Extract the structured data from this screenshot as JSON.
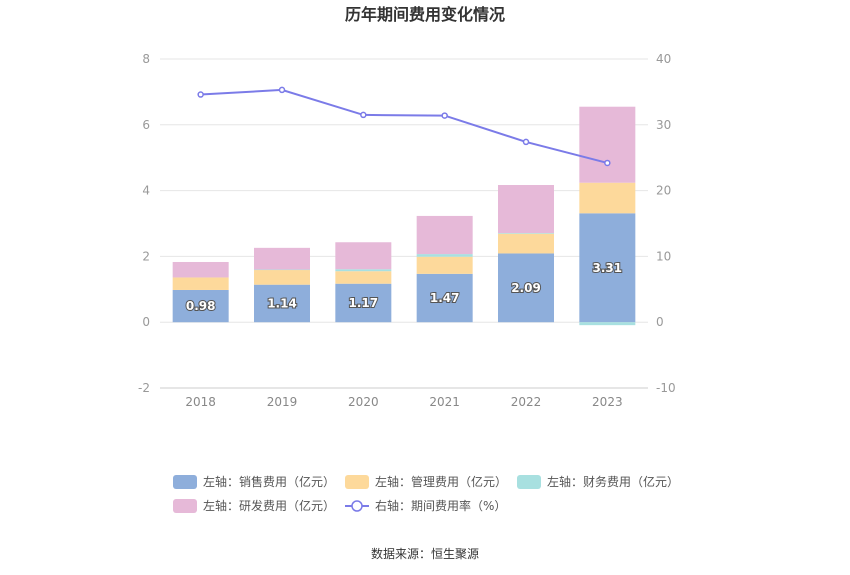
{
  "chart_data": {
    "type": "bar",
    "title": "历年期间费用变化情况",
    "categories": [
      "2018",
      "2019",
      "2020",
      "2021",
      "2022",
      "2023"
    ],
    "left_axis": {
      "ylim": [
        -2,
        8
      ],
      "ticks": [
        "-2",
        "0",
        "2",
        "4",
        "6",
        "8"
      ]
    },
    "right_axis": {
      "ylim": [
        -10,
        40
      ],
      "ticks": [
        "-10",
        "0",
        "10",
        "20",
        "30",
        "40"
      ]
    },
    "series": [
      {
        "name": "左轴：销售费用（亿元）",
        "type": "bar",
        "axis": "left",
        "color": "#8eaedb",
        "values": [
          0.98,
          1.14,
          1.17,
          1.47,
          2.09,
          3.31
        ],
        "labels": [
          "0.98",
          "1.14",
          "1.17",
          "1.47",
          "2.09",
          "3.31"
        ]
      },
      {
        "name": "左轴：管理费用（亿元）",
        "type": "bar",
        "axis": "left",
        "color": "#fdd99b",
        "values": [
          0.38,
          0.45,
          0.38,
          0.52,
          0.6,
          0.93
        ]
      },
      {
        "name": "左轴：财务费用（亿元）",
        "type": "bar",
        "axis": "left",
        "color": "#a8e0e0",
        "values": [
          0.0,
          0.01,
          0.06,
          0.08,
          0.02,
          -0.09
        ]
      },
      {
        "name": "左轴：研发费用（亿元）",
        "type": "bar",
        "axis": "left",
        "color": "#e6b9d8",
        "values": [
          0.47,
          0.66,
          0.82,
          1.16,
          1.46,
          2.31
        ]
      },
      {
        "name": "右轴：期间费用率（%）",
        "type": "line",
        "axis": "right",
        "color": "#7b7be8",
        "values": [
          34.6,
          35.3,
          31.5,
          31.4,
          27.4,
          24.2
        ]
      }
    ],
    "grid": true,
    "legend_position": "bottom"
  },
  "source_text": "数据来源：恒生聚源"
}
